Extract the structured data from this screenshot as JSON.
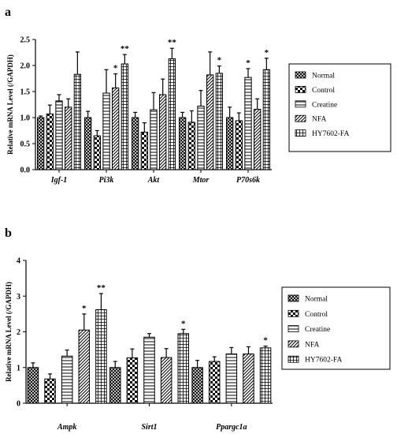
{
  "chart_data": [
    {
      "panel": "a",
      "type": "bar",
      "ylabel": "Relative mRNA Level (/GAPDH)",
      "ylim": [
        0,
        2.5
      ],
      "yticks": [
        "0.0",
        "0.5",
        "1.0",
        "1.5",
        "2.0",
        "2.5"
      ],
      "categories": [
        "Igf-1",
        "Pi3k",
        "Akt",
        "Mtor",
        "P70s6k"
      ],
      "legend_position": "right",
      "series": [
        {
          "name": "Normal",
          "pattern": "crosshatch",
          "values": [
            1.0,
            1.0,
            1.0,
            1.0,
            1.0
          ],
          "errors": [
            0.03,
            0.12,
            0.1,
            0.1,
            0.2
          ]
        },
        {
          "name": "Control",
          "pattern": "checker",
          "values": [
            1.07,
            0.65,
            0.72,
            0.91,
            0.94
          ],
          "errors": [
            0.17,
            0.1,
            0.18,
            0.22,
            0.15
          ]
        },
        {
          "name": "Creatine",
          "pattern": "hlines",
          "values": [
            1.32,
            1.47,
            1.15,
            1.22,
            1.77
          ],
          "errors": [
            0.12,
            0.45,
            0.33,
            0.3,
            0.17
          ]
        },
        {
          "name": "NFA",
          "pattern": "diagonal",
          "values": [
            1.2,
            1.57,
            1.44,
            1.82,
            1.16
          ],
          "errors": [
            0.16,
            0.27,
            0.3,
            0.44,
            0.2
          ]
        },
        {
          "name": "HY7602-FA",
          "pattern": "grid",
          "values": [
            1.83,
            2.03,
            2.13,
            1.85,
            1.92
          ],
          "errors": [
            0.43,
            0.18,
            0.2,
            0.14,
            0.22
          ]
        }
      ],
      "annotations": [
        {
          "category": "Pi3k",
          "series": "NFA",
          "text": "*"
        },
        {
          "category": "Pi3k",
          "series": "HY7602-FA",
          "text": "**"
        },
        {
          "category": "Akt",
          "series": "HY7602-FA",
          "text": "**"
        },
        {
          "category": "Mtor",
          "series": "HY7602-FA",
          "text": "*"
        },
        {
          "category": "P70s6k",
          "series": "Creatine",
          "text": "*"
        },
        {
          "category": "P70s6k",
          "series": "HY7602-FA",
          "text": "*"
        }
      ]
    },
    {
      "panel": "b",
      "type": "bar",
      "ylabel": "Relative mRNA Level (/GAPDH)",
      "ylim": [
        0,
        4
      ],
      "yticks": [
        "0",
        "1",
        "2",
        "3",
        "4"
      ],
      "categories": [
        "Ampk",
        "Sirt1",
        "Ppargc1a"
      ],
      "legend_position": "right",
      "series": [
        {
          "name": "Normal",
          "pattern": "crosshatch",
          "values": [
            1.0,
            1.0,
            1.0
          ],
          "errors": [
            0.13,
            0.17,
            0.2
          ]
        },
        {
          "name": "Control",
          "pattern": "checker",
          "values": [
            0.68,
            1.27,
            1.17
          ],
          "errors": [
            0.14,
            0.25,
            0.13
          ]
        },
        {
          "name": "Creatine",
          "pattern": "hlines",
          "values": [
            1.32,
            1.85,
            1.38
          ],
          "errors": [
            0.17,
            0.1,
            0.18
          ]
        },
        {
          "name": "NFA",
          "pattern": "diagonal",
          "values": [
            2.05,
            1.28,
            1.38
          ],
          "errors": [
            0.45,
            0.25,
            0.2
          ]
        },
        {
          "name": "HY7602-FA",
          "pattern": "grid",
          "values": [
            2.62,
            1.95,
            1.55
          ],
          "errors": [
            0.45,
            0.12,
            0.05
          ]
        }
      ],
      "annotations": [
        {
          "category": "Ampk",
          "series": "NFA",
          "text": "*"
        },
        {
          "category": "Ampk",
          "series": "HY7602-FA",
          "text": "**"
        },
        {
          "category": "Sirt1",
          "series": "HY7602-FA",
          "text": "*"
        },
        {
          "category": "Ppargc1a",
          "series": "HY7602-FA",
          "text": "*"
        }
      ]
    }
  ]
}
